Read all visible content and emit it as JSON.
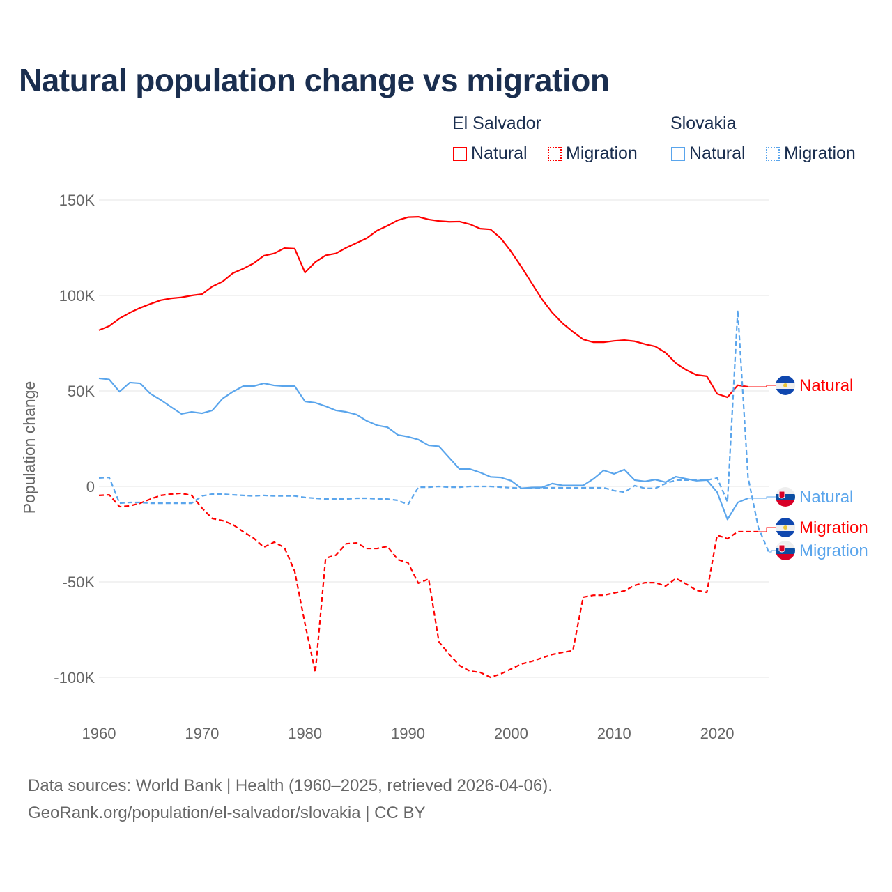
{
  "title": "Natural population change vs migration",
  "legend": {
    "groups": [
      {
        "name": "El Salvador",
        "items": [
          "Natural",
          "Migration"
        ]
      },
      {
        "name": "Slovakia",
        "items": [
          "Natural",
          "Migration"
        ]
      }
    ]
  },
  "source": {
    "line1": "Data sources: World Bank | Health (1960–2025, retrieved 2026-04-06).",
    "line2": "GeoRank.org/population/el-salvador/slovakia | CC BY"
  },
  "colors": {
    "el_salvador": "#ff0000",
    "slovakia": "#5aa5ec",
    "title": "#1a2e4f"
  },
  "chart_data": {
    "type": "line",
    "title": "Natural population change vs migration",
    "xlabel": "",
    "ylabel": "Population change",
    "y_unit": "thousands",
    "xlim": [
      1960,
      2025
    ],
    "ylim": [
      -115,
      150
    ],
    "x_ticks": [
      1960,
      1970,
      1980,
      1990,
      2000,
      2010,
      2020
    ],
    "x_tick_labels": [
      "1960",
      "1970",
      "1980",
      "1990",
      "2000",
      "2010",
      "2020"
    ],
    "y_ticks": [
      150,
      100,
      50,
      0,
      -50,
      -100
    ],
    "y_tick_labels": [
      "150K",
      "100K",
      "50K",
      "0",
      "-50K",
      "-100K"
    ],
    "grid": true,
    "legend_position": "top-right",
    "series": [
      {
        "name": "El Salvador Natural",
        "end_label": "Natural",
        "country": "el_salvador",
        "dashed": false,
        "start": 1960,
        "values": [
          81.8,
          84,
          88,
          91,
          93.5,
          95.6,
          97.5,
          98.5,
          99,
          100,
          100.7,
          104.7,
          107.3,
          111.7,
          114,
          116.8,
          120.8,
          122,
          124.8,
          124.5,
          112,
          117.5,
          121,
          122,
          125,
          127.5,
          130,
          134,
          136.5,
          139.4,
          141,
          141.2,
          139.8,
          139,
          138.6,
          138.7,
          137.3,
          135,
          134.6,
          130,
          123,
          115,
          106.5,
          98,
          91,
          85.4,
          81,
          77,
          75.5,
          75.5,
          76.2,
          76.6,
          76,
          74.5,
          73.3,
          70,
          64.5,
          61,
          58.4,
          57.7,
          48.5,
          46.7,
          53,
          52.2
        ]
      },
      {
        "name": "Slovakia Natural",
        "end_label": "Natural",
        "country": "slovakia",
        "dashed": false,
        "start": 1960,
        "values": [
          56.6,
          56,
          49.6,
          54.4,
          54,
          48.5,
          45.3,
          41.6,
          38,
          39,
          38.3,
          39.8,
          46,
          49.6,
          52.5,
          52.5,
          54,
          52.9,
          52.5,
          52.5,
          44.5,
          43.8,
          42,
          39.8,
          39,
          37.6,
          34.3,
          32,
          31,
          27,
          26,
          24.5,
          21.5,
          21,
          15,
          9.1,
          9.1,
          7.3,
          5,
          4.7,
          3,
          -1,
          -0.6,
          -0.5,
          1.5,
          0.5,
          0.5,
          0.5,
          4,
          8.4,
          6.6,
          8.8,
          3.3,
          2.6,
          3.6,
          2.2,
          5.1,
          4,
          3,
          3.3,
          -3,
          -17.3,
          -8.4,
          -6.2
        ]
      },
      {
        "name": "El Salvador Migration",
        "end_label": "Migration",
        "country": "el_salvador",
        "dashed": true,
        "start": 1960,
        "values": [
          -4.7,
          -4.4,
          -10.6,
          -10.2,
          -8.8,
          -6.6,
          -4.7,
          -4,
          -3.6,
          -4.7,
          -11.3,
          -16.8,
          -17.9,
          -20,
          -23.7,
          -27,
          -31.8,
          -29.2,
          -32,
          -44.5,
          -72,
          -97.4,
          -37.6,
          -36,
          -30,
          -29.6,
          -32.5,
          -32.5,
          -31.4,
          -38.3,
          -40,
          -50.7,
          -48.5,
          -81.4,
          -88,
          -93.8,
          -96.7,
          -97.4,
          -100,
          -98.2,
          -95.6,
          -93,
          -91.6,
          -89.8,
          -88,
          -86.9,
          -86,
          -58,
          -57,
          -57,
          -55.8,
          -54.7,
          -51.8,
          -50.4,
          -50.4,
          -52.2,
          -48.2,
          -51.1,
          -54.4,
          -55.5,
          -25.5,
          -27.4,
          -23.7,
          -23.7,
          -23.7
        ]
      },
      {
        "name": "Slovakia Migration",
        "end_label": "Migration",
        "country": "slovakia",
        "dashed": true,
        "start": 1960,
        "values": [
          4.4,
          4.7,
          -8.8,
          -8.4,
          -8.4,
          -8.8,
          -8.8,
          -8.8,
          -8.8,
          -8.8,
          -5,
          -4,
          -4,
          -4.4,
          -4.7,
          -5,
          -4.7,
          -5,
          -5,
          -5,
          -5.8,
          -6.2,
          -6.6,
          -6.6,
          -6.6,
          -6.2,
          -6.2,
          -6.6,
          -6.6,
          -7.3,
          -9.5,
          -0.4,
          -0.4,
          0,
          -0.4,
          -0.4,
          0,
          0,
          0,
          -0.4,
          -0.7,
          -1,
          -0.7,
          -0.7,
          -0.7,
          -0.7,
          -0.7,
          -0.7,
          -0.7,
          -0.7,
          -2.2,
          -3,
          0.4,
          -1,
          -1,
          1.5,
          3.3,
          3.3,
          3.3,
          3.3,
          4.4,
          -8,
          92.3,
          4.7,
          -21.5,
          -34.3
        ]
      }
    ]
  }
}
